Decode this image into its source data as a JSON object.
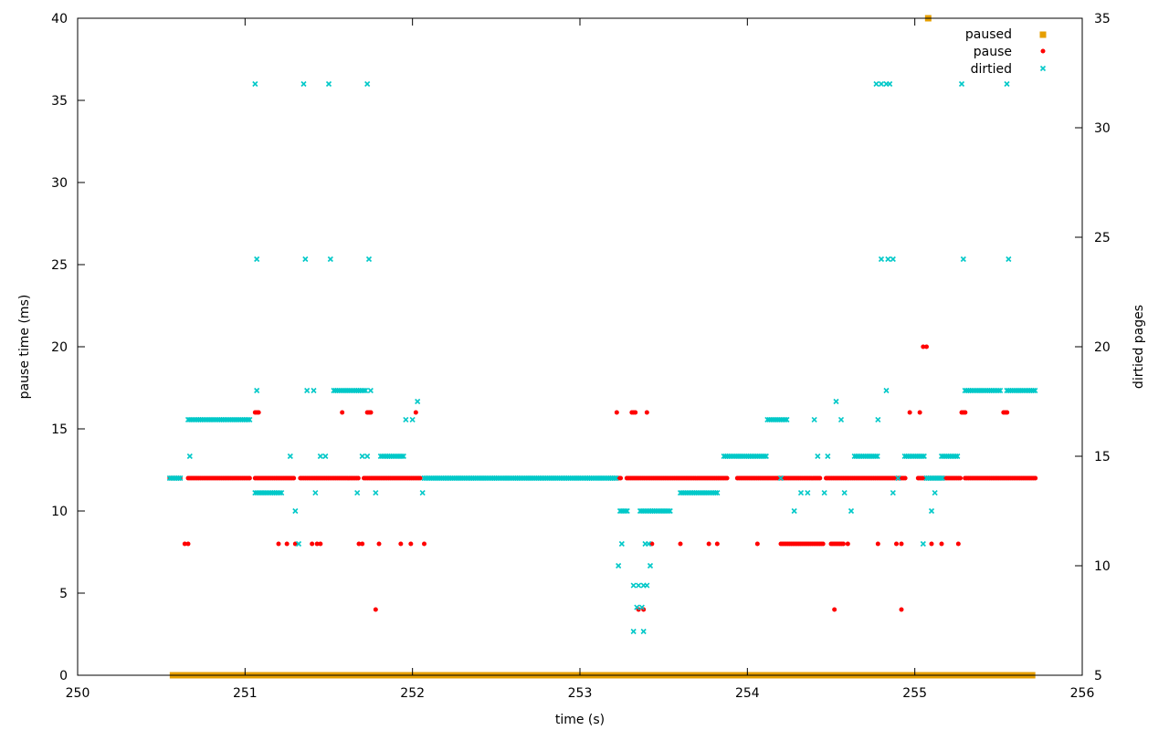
{
  "chart_data": {
    "type": "scatter",
    "title": "",
    "xlabel": "time (s)",
    "ylabel": "pause time (ms)",
    "y2label": "dirtied pages",
    "xlim": [
      250,
      256
    ],
    "ylim": [
      0,
      40
    ],
    "y2lim": [
      5,
      35
    ],
    "x_ticks": [
      "250",
      "251",
      "252",
      "253",
      "254",
      "255",
      "256"
    ],
    "y_ticks": [
      "0",
      "5",
      "10",
      "15",
      "20",
      "25",
      "30",
      "35",
      "40"
    ],
    "y2_ticks": [
      "5",
      "10",
      "15",
      "20",
      "25",
      "30",
      "35"
    ],
    "grid": false,
    "legend_position": "top-right",
    "colors": {
      "paused": "#e69f00",
      "pause": "#ff0000",
      "dirtied": "#00c8c8"
    },
    "series": [
      {
        "name": "paused",
        "axis": "y",
        "marker": "square",
        "points": [
          [
            255.08,
            40
          ]
        ],
        "baseline": {
          "x_from": 250.55,
          "x_to": 255.72,
          "y": 0
        }
      },
      {
        "name": "pause",
        "axis": "y",
        "marker": "circle",
        "runs": [
          [
            250.55,
            250.62,
            12
          ],
          [
            250.66,
            251.03,
            12
          ],
          [
            251.06,
            251.3,
            12
          ],
          [
            251.33,
            251.68,
            12
          ],
          [
            251.71,
            252.05,
            12
          ],
          [
            253.18,
            253.25,
            12
          ],
          [
            253.28,
            253.88,
            12
          ],
          [
            253.94,
            254.44,
            12
          ],
          [
            254.47,
            254.95,
            12
          ],
          [
            255.02,
            255.28,
            12
          ],
          [
            255.3,
            255.72,
            12
          ],
          [
            254.2,
            254.46,
            8
          ],
          [
            254.5,
            254.58,
            8
          ],
          [
            251.06,
            251.09,
            16
          ],
          [
            253.31,
            253.34,
            16
          ],
          [
            251.73,
            251.76,
            16
          ],
          [
            255.28,
            255.31,
            16
          ],
          [
            255.53,
            255.56,
            16
          ]
        ],
        "points": [
          [
            250.64,
            8
          ],
          [
            250.66,
            8
          ],
          [
            251.2,
            8
          ],
          [
            251.25,
            8
          ],
          [
            251.3,
            8
          ],
          [
            251.4,
            8
          ],
          [
            251.43,
            8
          ],
          [
            251.45,
            8
          ],
          [
            251.68,
            8
          ],
          [
            251.7,
            8
          ],
          [
            251.8,
            8
          ],
          [
            251.93,
            8
          ],
          [
            251.99,
            8
          ],
          [
            252.07,
            8
          ],
          [
            253.43,
            8
          ],
          [
            253.6,
            8
          ],
          [
            253.77,
            8
          ],
          [
            253.82,
            8
          ],
          [
            254.06,
            8
          ],
          [
            254.6,
            8
          ],
          [
            254.78,
            8
          ],
          [
            254.89,
            8
          ],
          [
            254.92,
            8
          ],
          [
            255.1,
            8
          ],
          [
            255.16,
            8
          ],
          [
            255.26,
            8
          ],
          [
            253.22,
            16
          ],
          [
            253.4,
            16
          ],
          [
            251.58,
            16
          ],
          [
            252.02,
            16
          ],
          [
            254.97,
            16
          ],
          [
            255.03,
            16
          ],
          [
            251.78,
            4
          ],
          [
            253.35,
            4
          ],
          [
            253.38,
            4
          ],
          [
            254.52,
            4
          ],
          [
            254.92,
            4
          ],
          [
            255.05,
            20
          ],
          [
            255.07,
            20
          ]
        ]
      },
      {
        "name": "dirtied",
        "axis": "y2",
        "marker": "x",
        "runs": [
          [
            250.55,
            250.62,
            14
          ],
          [
            252.07,
            253.22,
            14
          ],
          [
            250.66,
            251.03,
            16.67
          ],
          [
            251.06,
            251.22,
            13.33
          ],
          [
            251.53,
            251.72,
            18
          ],
          [
            251.81,
            251.95,
            15
          ],
          [
            253.36,
            253.54,
            12.5
          ],
          [
            253.6,
            253.83,
            13.33
          ],
          [
            253.86,
            254.12,
            15
          ],
          [
            254.12,
            254.24,
            16.67
          ],
          [
            254.64,
            254.78,
            15
          ],
          [
            254.94,
            255.06,
            15
          ],
          [
            255.07,
            255.17,
            14
          ],
          [
            255.16,
            255.26,
            15
          ],
          [
            255.3,
            255.52,
            18
          ],
          [
            255.55,
            255.72,
            18
          ],
          [
            253.24,
            253.29,
            12.5
          ]
        ],
        "points": [
          [
            250.67,
            15
          ],
          [
            251.27,
            15
          ],
          [
            251.3,
            12.5
          ],
          [
            251.32,
            11
          ],
          [
            251.37,
            18
          ],
          [
            251.41,
            18
          ],
          [
            251.42,
            13.33
          ],
          [
            251.45,
            15
          ],
          [
            251.48,
            15
          ],
          [
            251.67,
            13.33
          ],
          [
            251.7,
            15
          ],
          [
            251.73,
            15
          ],
          [
            251.78,
            13.33
          ],
          [
            251.75,
            18
          ],
          [
            251.96,
            16.67
          ],
          [
            252.0,
            16.67
          ],
          [
            252.03,
            17.5
          ],
          [
            252.06,
            13.33
          ],
          [
            253.23,
            10
          ],
          [
            253.25,
            11
          ],
          [
            253.32,
            9.1
          ],
          [
            253.35,
            9.1
          ],
          [
            253.38,
            9.1
          ],
          [
            253.4,
            9.1
          ],
          [
            253.34,
            8.1
          ],
          [
            253.37,
            8.1
          ],
          [
            253.39,
            11
          ],
          [
            253.41,
            11
          ],
          [
            253.42,
            10
          ],
          [
            253.32,
            7
          ],
          [
            253.38,
            7
          ],
          [
            254.2,
            14
          ],
          [
            254.28,
            12.5
          ],
          [
            254.32,
            13.33
          ],
          [
            254.36,
            13.33
          ],
          [
            254.4,
            16.67
          ],
          [
            254.42,
            15
          ],
          [
            254.46,
            13.33
          ],
          [
            254.48,
            15
          ],
          [
            254.53,
            17.5
          ],
          [
            254.56,
            16.67
          ],
          [
            254.58,
            13.33
          ],
          [
            254.62,
            12.5
          ],
          [
            254.78,
            16.67
          ],
          [
            254.83,
            18
          ],
          [
            254.87,
            13.33
          ],
          [
            254.9,
            14
          ],
          [
            255.1,
            12.5
          ],
          [
            255.12,
            13.33
          ],
          [
            255.05,
            11
          ],
          [
            251.07,
            18
          ],
          [
            251.06,
            32
          ],
          [
            251.07,
            24
          ],
          [
            251.35,
            32
          ],
          [
            251.36,
            24
          ],
          [
            251.5,
            32
          ],
          [
            251.51,
            24
          ],
          [
            251.73,
            32
          ],
          [
            251.74,
            24
          ],
          [
            254.77,
            32
          ],
          [
            254.8,
            24
          ],
          [
            254.8,
            32
          ],
          [
            254.83,
            32
          ],
          [
            254.84,
            24
          ],
          [
            254.85,
            32
          ],
          [
            254.87,
            24
          ],
          [
            255.28,
            32
          ],
          [
            255.29,
            24
          ],
          [
            255.55,
            32
          ],
          [
            255.56,
            24
          ]
        ]
      }
    ]
  }
}
